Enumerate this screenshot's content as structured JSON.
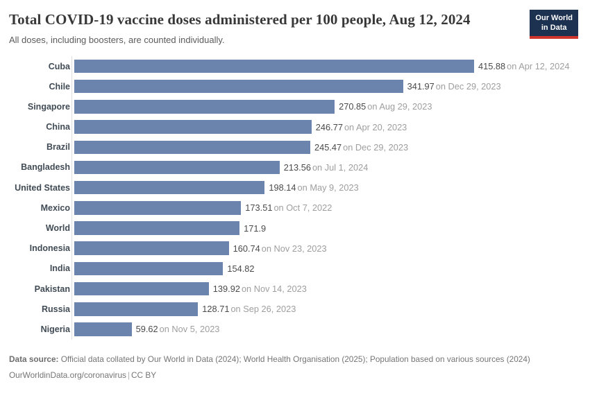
{
  "header": {
    "title": "Total COVID-19 vaccine doses administered per 100 people, Aug 12, 2024",
    "subtitle": "All doses, including boosters, are counted individually.",
    "logo": {
      "line1": "Our World",
      "line2": "in Data"
    }
  },
  "chart_data": {
    "type": "bar",
    "orientation": "horizontal",
    "title": "Total COVID-19 vaccine doses administered per 100 people, Aug 12, 2024",
    "xlabel": "",
    "ylabel": "",
    "unit": "doses per 100 people",
    "xlim": [
      0,
      420
    ],
    "axis_max": 415.88,
    "grid": false,
    "legend": "none",
    "bar_color": "#6b84ad",
    "rows": [
      {
        "label": "Cuba",
        "value": 415.88,
        "value_label": "415.88",
        "date_label": "on Apr 12, 2024"
      },
      {
        "label": "Chile",
        "value": 341.97,
        "value_label": "341.97",
        "date_label": "on Dec 29, 2023"
      },
      {
        "label": "Singapore",
        "value": 270.85,
        "value_label": "270.85",
        "date_label": "on Aug 29, 2023"
      },
      {
        "label": "China",
        "value": 246.77,
        "value_label": "246.77",
        "date_label": "on Apr 20, 2023"
      },
      {
        "label": "Brazil",
        "value": 245.47,
        "value_label": "245.47",
        "date_label": "on Dec 29, 2023"
      },
      {
        "label": "Bangladesh",
        "value": 213.56,
        "value_label": "213.56",
        "date_label": "on Jul 1, 2024"
      },
      {
        "label": "United States",
        "value": 198.14,
        "value_label": "198.14",
        "date_label": "on May 9, 2023"
      },
      {
        "label": "Mexico",
        "value": 173.51,
        "value_label": "173.51",
        "date_label": "on Oct 7, 2022"
      },
      {
        "label": "World",
        "value": 171.9,
        "value_label": "171.9",
        "date_label": ""
      },
      {
        "label": "Indonesia",
        "value": 160.74,
        "value_label": "160.74",
        "date_label": "on Nov 23, 2023"
      },
      {
        "label": "India",
        "value": 154.82,
        "value_label": "154.82",
        "date_label": ""
      },
      {
        "label": "Pakistan",
        "value": 139.92,
        "value_label": "139.92",
        "date_label": "on Nov 14, 2023"
      },
      {
        "label": "Russia",
        "value": 128.71,
        "value_label": "128.71",
        "date_label": "on Sep 26, 2023"
      },
      {
        "label": "Nigeria",
        "value": 59.62,
        "value_label": "59.62",
        "date_label": "on Nov 5, 2023"
      }
    ]
  },
  "footer": {
    "source_bold": "Data source:",
    "source_text": " Official data collated by Our World in Data (2024); World Health Organisation (2025); Population based on various sources (2024)",
    "link": "OurWorldinData.org/coronavirus",
    "separator": "|",
    "license": "CC BY"
  },
  "colors": {
    "bar": "#6b84ad",
    "axis_line": "#dedede",
    "logo_navy": "#1d3150",
    "logo_red": "#cf352c",
    "title_text": "#383838",
    "value_text": "#4a4a4a",
    "date_text": "#9e9e9e"
  }
}
